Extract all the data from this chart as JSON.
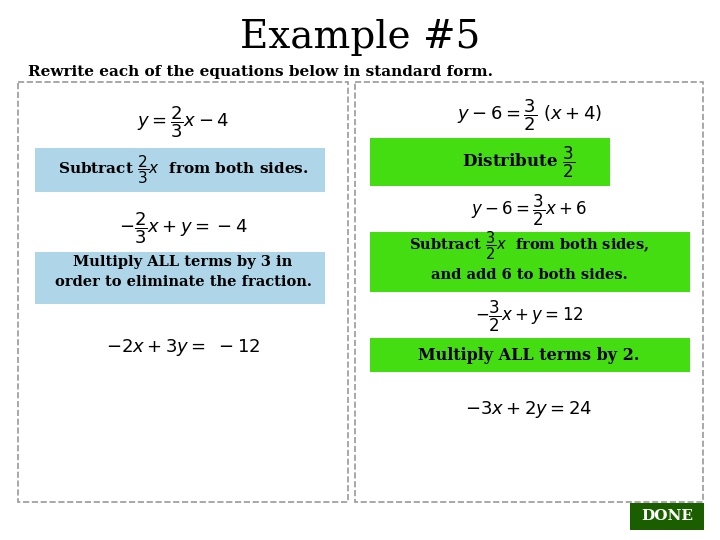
{
  "title": "Example #5",
  "subtitle": "Rewrite each of the equations below in standard form.",
  "bg_color": "#ffffff",
  "title_fontsize": 28,
  "subtitle_fontsize": 11,
  "light_blue": "#aed6e8",
  "light_green": "#44dd11",
  "dark_green": "#1a5e00",
  "done_bg": "#1a5e00",
  "done_text": "DONE",
  "box_border": "#888888"
}
